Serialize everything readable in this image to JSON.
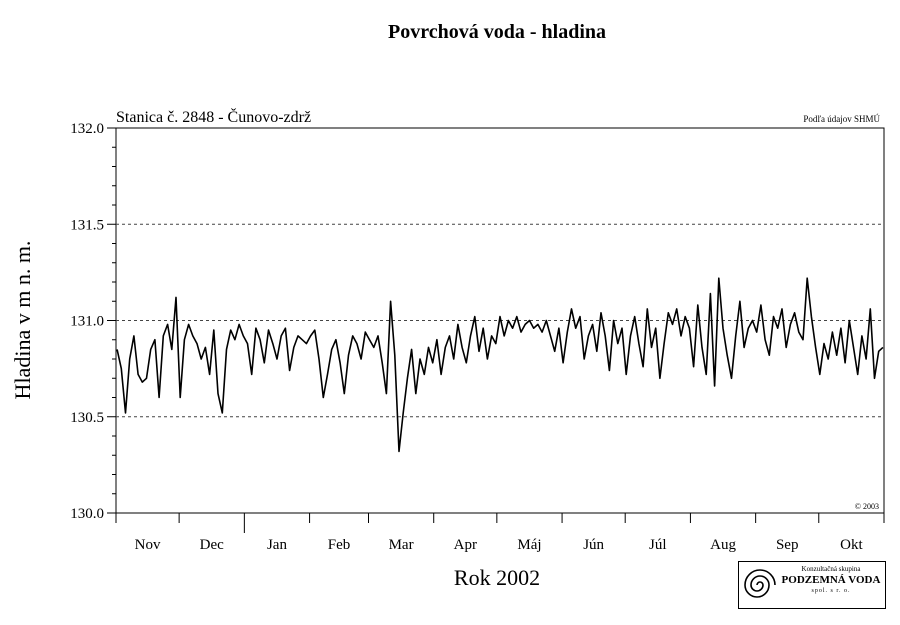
{
  "chart_data": {
    "type": "line",
    "title": "Povrchová voda - hladina",
    "station": "Stanica č. 2848 - Čunovo-zdrž",
    "source_note": "Podľa údajov SHMÚ",
    "copyright": "© 2003",
    "xlabel": "Rok 2002",
    "ylabel": "Hladina v m n. m.",
    "ylim": [
      130.0,
      132.0
    ],
    "y_ticks": [
      "130.0",
      "130.5",
      "131.0",
      "131.5",
      "132.0"
    ],
    "y_gridlines": [
      130.5,
      131.0,
      131.5
    ],
    "x_tick_labels": [
      "Nov",
      "Dec",
      "Jan",
      "Feb",
      "Mar",
      "Apr",
      "Máj",
      "Jún",
      "Júl",
      "Aug",
      "Sep",
      "Okt"
    ],
    "x_range": [
      "2001-11-01",
      "2002-10-31"
    ],
    "series": [
      {
        "x": [
          "2001-11-01",
          "2001-11-03",
          "2001-11-05",
          "2001-11-07",
          "2001-11-09",
          "2001-11-11",
          "2001-11-13",
          "2001-11-15",
          "2001-11-17",
          "2001-11-19",
          "2001-11-21",
          "2001-11-23",
          "2001-11-25",
          "2001-11-27",
          "2001-11-29",
          "2001-12-01",
          "2001-12-03",
          "2001-12-05",
          "2001-12-07",
          "2001-12-09",
          "2001-12-11",
          "2001-12-13",
          "2001-12-15",
          "2001-12-17",
          "2001-12-19",
          "2001-12-21",
          "2001-12-23",
          "2001-12-25",
          "2001-12-27",
          "2001-12-29",
          "2001-12-31",
          "2002-01-02",
          "2002-01-04",
          "2002-01-06",
          "2002-01-08",
          "2002-01-10",
          "2002-01-12",
          "2002-01-14",
          "2002-01-16",
          "2002-01-18",
          "2002-01-20",
          "2002-01-22",
          "2002-01-24",
          "2002-01-26",
          "2002-01-28",
          "2002-01-30",
          "2002-02-01",
          "2002-02-03",
          "2002-02-05",
          "2002-02-07",
          "2002-02-09",
          "2002-02-11",
          "2002-02-13",
          "2002-02-15",
          "2002-02-17",
          "2002-02-19",
          "2002-02-21",
          "2002-02-23",
          "2002-02-25",
          "2002-02-27",
          "2002-03-01",
          "2002-03-03",
          "2002-03-05",
          "2002-03-07",
          "2002-03-09",
          "2002-03-11",
          "2002-03-13",
          "2002-03-15",
          "2002-03-17",
          "2002-03-19",
          "2002-03-21",
          "2002-03-23",
          "2002-03-25",
          "2002-03-27",
          "2002-03-29",
          "2002-03-31",
          "2002-04-02",
          "2002-04-04",
          "2002-04-06",
          "2002-04-08",
          "2002-04-10",
          "2002-04-12",
          "2002-04-14",
          "2002-04-16",
          "2002-04-18",
          "2002-04-20",
          "2002-04-22",
          "2002-04-24",
          "2002-04-26",
          "2002-04-28",
          "2002-04-30",
          "2002-05-02",
          "2002-05-04",
          "2002-05-06",
          "2002-05-08",
          "2002-05-10",
          "2002-05-12",
          "2002-05-14",
          "2002-05-16",
          "2002-05-18",
          "2002-05-20",
          "2002-05-22",
          "2002-05-24",
          "2002-05-26",
          "2002-05-28",
          "2002-05-30",
          "2002-06-01",
          "2002-06-03",
          "2002-06-05",
          "2002-06-07",
          "2002-06-09",
          "2002-06-11",
          "2002-06-13",
          "2002-06-15",
          "2002-06-17",
          "2002-06-19",
          "2002-06-21",
          "2002-06-23",
          "2002-06-25",
          "2002-06-27",
          "2002-06-29",
          "2002-07-01",
          "2002-07-03",
          "2002-07-05",
          "2002-07-07",
          "2002-07-09",
          "2002-07-11",
          "2002-07-13",
          "2002-07-15",
          "2002-07-17",
          "2002-07-19",
          "2002-07-21",
          "2002-07-23",
          "2002-07-25",
          "2002-07-27",
          "2002-07-29",
          "2002-07-31",
          "2002-08-02",
          "2002-08-04",
          "2002-08-06",
          "2002-08-08",
          "2002-08-10",
          "2002-08-12",
          "2002-08-14",
          "2002-08-16",
          "2002-08-18",
          "2002-08-20",
          "2002-08-22",
          "2002-08-24",
          "2002-08-26",
          "2002-08-28",
          "2002-08-30",
          "2002-09-01",
          "2002-09-03",
          "2002-09-05",
          "2002-09-07",
          "2002-09-09",
          "2002-09-11",
          "2002-09-13",
          "2002-09-15",
          "2002-09-17",
          "2002-09-19",
          "2002-09-21",
          "2002-09-23",
          "2002-09-25",
          "2002-09-27",
          "2002-09-29",
          "2002-10-01",
          "2002-10-03",
          "2002-10-05",
          "2002-10-07",
          "2002-10-09",
          "2002-10-11",
          "2002-10-13",
          "2002-10-15",
          "2002-10-17",
          "2002-10-19",
          "2002-10-21",
          "2002-10-23",
          "2002-10-25",
          "2002-10-27",
          "2002-10-29",
          "2002-10-31"
        ],
        "values": [
          130.85,
          130.75,
          130.52,
          130.8,
          130.92,
          130.72,
          130.68,
          130.7,
          130.85,
          130.9,
          130.6,
          130.92,
          130.98,
          130.85,
          131.12,
          130.6,
          130.9,
          130.98,
          130.92,
          130.88,
          130.8,
          130.86,
          130.72,
          130.95,
          130.62,
          130.52,
          130.85,
          130.95,
          130.9,
          130.98,
          130.92,
          130.88,
          130.72,
          130.96,
          130.9,
          130.78,
          130.95,
          130.88,
          130.8,
          130.92,
          130.96,
          130.74,
          130.86,
          130.92,
          130.9,
          130.88,
          130.92,
          130.95,
          130.8,
          130.6,
          130.72,
          130.85,
          130.9,
          130.78,
          130.62,
          130.82,
          130.92,
          130.88,
          130.8,
          130.94,
          130.9,
          130.86,
          130.92,
          130.78,
          130.62,
          131.1,
          130.82,
          130.32,
          130.52,
          130.7,
          130.85,
          130.62,
          130.8,
          130.72,
          130.86,
          130.78,
          130.9,
          130.72,
          130.86,
          130.92,
          130.8,
          130.98,
          130.86,
          130.78,
          130.92,
          131.02,
          130.84,
          130.96,
          130.8,
          130.92,
          130.88,
          131.02,
          130.92,
          131.0,
          130.96,
          131.02,
          130.94,
          130.98,
          131.0,
          130.96,
          130.98,
          130.94,
          131.0,
          130.92,
          130.84,
          130.96,
          130.78,
          130.94,
          131.06,
          130.96,
          131.02,
          130.8,
          130.92,
          130.98,
          130.84,
          131.04,
          130.92,
          130.74,
          131.0,
          130.88,
          130.96,
          130.72,
          130.92,
          131.02,
          130.88,
          130.76,
          131.06,
          130.86,
          130.96,
          130.7,
          130.88,
          131.04,
          130.98,
          131.06,
          130.92,
          131.02,
          130.96,
          130.76,
          131.08,
          130.86,
          130.72,
          131.14,
          130.66,
          131.22,
          130.96,
          130.82,
          130.7,
          130.92,
          131.1,
          130.86,
          130.96,
          131.0,
          130.94,
          131.08,
          130.9,
          130.82,
          131.02,
          130.96,
          131.06,
          130.86,
          130.98,
          131.04,
          130.94,
          130.9,
          131.22,
          131.02,
          130.86,
          130.72,
          130.88,
          130.8,
          130.94,
          130.82,
          130.96,
          130.78,
          131.0,
          130.86,
          130.72,
          130.92,
          130.8,
          131.06,
          130.7,
          130.84,
          130.86
        ]
      }
    ]
  },
  "logo": {
    "line1": "Konzultačná skupina",
    "line2": "PODZEMNÁ VODA",
    "line3": "spol. s r. o."
  }
}
